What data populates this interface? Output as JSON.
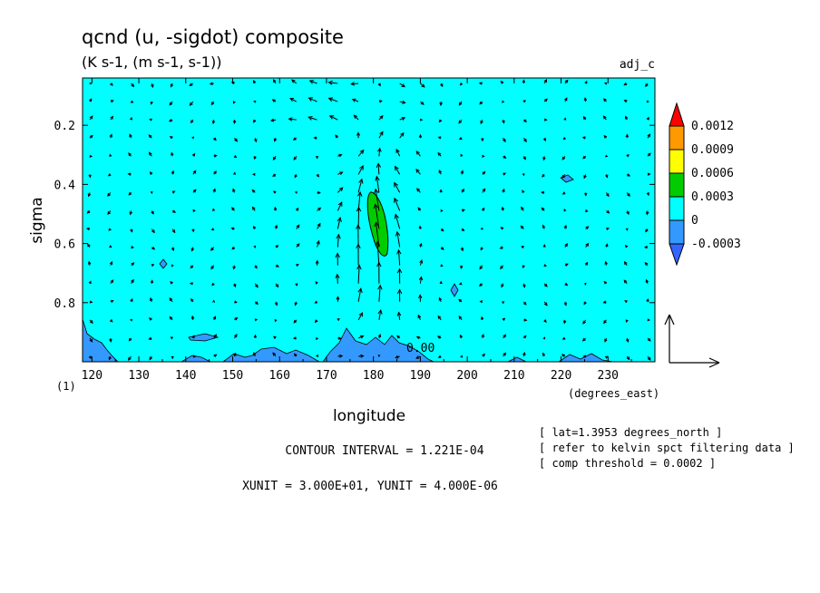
{
  "chart_data": {
    "type": "heatmap",
    "title": "qcnd (u, -sigdot) composite",
    "subtitle": "(K s-1, (m s-1, s-1))",
    "run_label": "adj_c",
    "xlabel": "longitude",
    "x_units": "(degrees_east)",
    "ylabel": "sigma",
    "y_note": "(1)",
    "x_ticks": [
      "120",
      "130",
      "140",
      "150",
      "160",
      "170",
      "180",
      "190",
      "200",
      "210",
      "220",
      "230"
    ],
    "y_ticks": [
      "0.2",
      "0.4",
      "0.6",
      "0.8"
    ],
    "xlim": [
      118,
      240
    ],
    "ylim": [
      1.0,
      0.04
    ],
    "y_inverted": true,
    "contour_label": "0.00",
    "colorbar": {
      "labels": [
        "0.0012",
        "0.0009",
        "0.0006",
        "0.0003",
        "0",
        "-0.0003"
      ],
      "colors": [
        "#ff0000",
        "#ff9900",
        "#ffff00",
        "#00cc00",
        "#00ffff",
        "#3399ff",
        "#3366ff"
      ]
    },
    "features": [
      {
        "name": "max",
        "lon": 181,
        "sigma": 0.53,
        "min_value": 0.0003
      },
      {
        "name": "negative",
        "lon": 180,
        "sigma": 0.96,
        "value": -0.0003
      }
    ],
    "footer": {
      "contour_interval": "CONTOUR INTERVAL = 1.221E-04",
      "units": "XUNIT = 3.000E+01, YUNIT = 4.000E-06"
    },
    "notes": [
      "[ lat=1.3953 degrees_north ]",
      "[ refer to kelvin spct filtering data ]",
      "[ comp threshold = 0.0002 ]"
    ]
  }
}
